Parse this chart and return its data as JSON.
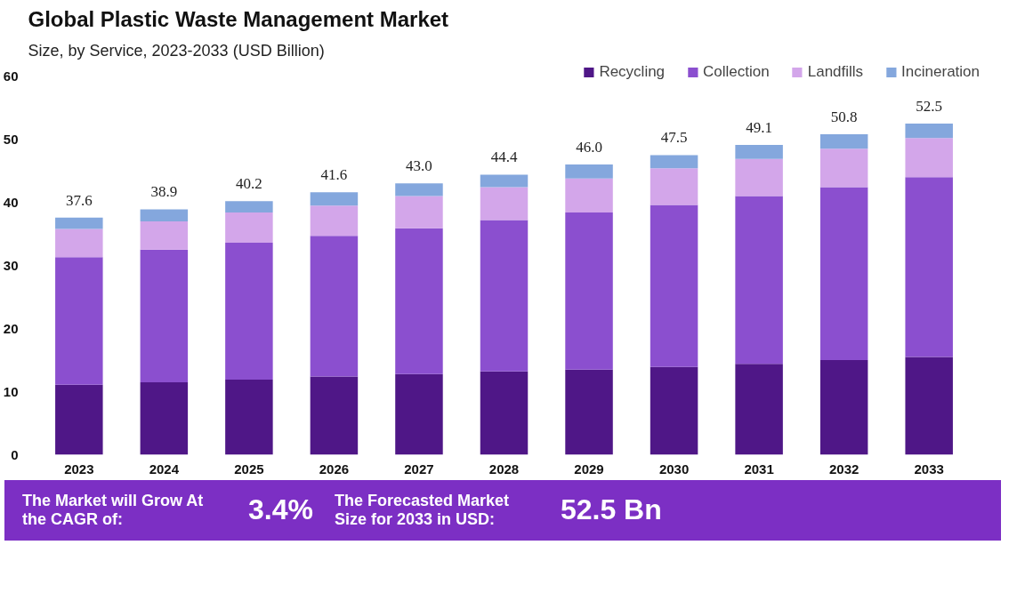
{
  "chart_data": {
    "type": "bar",
    "stacked": true,
    "title": "Global Plastic Waste Management Market",
    "subtitle": "Size, by Service, 2023-2033 (USD Billion)",
    "categories": [
      "2023",
      "2024",
      "2025",
      "2026",
      "2027",
      "2028",
      "2029",
      "2030",
      "2031",
      "2032",
      "2033"
    ],
    "series": [
      {
        "name": "Recycling",
        "color": "#4f1787",
        "values": [
          11.1,
          11.5,
          11.9,
          12.4,
          12.8,
          13.2,
          13.5,
          13.9,
          14.4,
          15.0,
          15.5
        ]
      },
      {
        "name": "Collection",
        "color": "#8b4fcf",
        "values": [
          20.2,
          21.0,
          21.7,
          22.3,
          23.1,
          24.0,
          24.9,
          25.7,
          26.6,
          27.4,
          28.5
        ]
      },
      {
        "name": "Landfills",
        "color": "#d3a6ea",
        "values": [
          4.5,
          4.5,
          4.8,
          4.8,
          5.1,
          5.2,
          5.4,
          5.8,
          5.9,
          6.1,
          6.2
        ]
      },
      {
        "name": "Incineration",
        "color": "#84a7dd",
        "values": [
          1.8,
          1.9,
          1.8,
          2.1,
          2.0,
          2.0,
          2.2,
          2.1,
          2.2,
          2.3,
          2.3
        ]
      }
    ],
    "totals": [
      "37.6",
      "38.9",
      "40.2",
      "41.6",
      "43.0",
      "44.4",
      "46.0",
      "47.5",
      "49.1",
      "50.8",
      "52.5"
    ],
    "ylim": [
      0,
      62
    ],
    "yticks": [
      0,
      10,
      20,
      30,
      40,
      50,
      60
    ],
    "grid": false,
    "legend": "top right",
    "annotations": [
      "The Market will Grow At the CAGR of:",
      "3.4%",
      "The Forecasted Market Size for 2033 in USD:",
      "52.5 Bn"
    ]
  }
}
